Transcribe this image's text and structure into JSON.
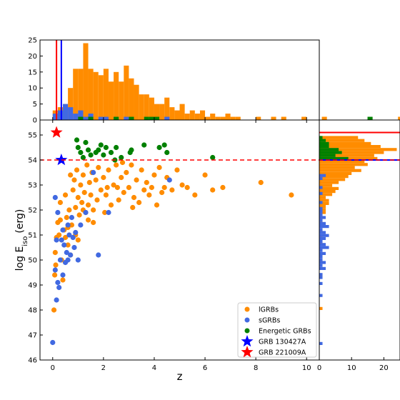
{
  "chart_data": [
    {
      "panel": "main-scatter",
      "type": "scatter",
      "xlabel": "z",
      "ylabel_base": "log E",
      "ylabel_sub": "iso",
      "ylabel_unit": "(erg)",
      "xlim": [
        -0.5,
        10.5
      ],
      "ylim": [
        46,
        55.6
      ],
      "xticks": [
        "0",
        "2",
        "4",
        "6",
        "8",
        "10"
      ],
      "yticks": [
        "46",
        "47",
        "48",
        "49",
        "50",
        "51",
        "52",
        "53",
        "54",
        "55"
      ],
      "threshold_y": 54,
      "legend_position": "lower right",
      "series": [
        {
          "name": "lGRBs",
          "color": "#ff8c00",
          "points": [
            [
              0.05,
              48.0
            ],
            [
              0.08,
              49.4
            ],
            [
              0.1,
              50.3
            ],
            [
              0.12,
              49.8
            ],
            [
              0.15,
              50.9
            ],
            [
              0.2,
              51.5
            ],
            [
              0.25,
              51.0
            ],
            [
              0.3,
              52.3
            ],
            [
              0.35,
              50.0
            ],
            [
              0.4,
              49.2
            ],
            [
              0.45,
              51.2
            ],
            [
              0.5,
              52.6
            ],
            [
              0.55,
              51.7
            ],
            [
              0.6,
              50.6
            ],
            [
              0.65,
              52.0
            ],
            [
              0.7,
              53.4
            ],
            [
              0.75,
              51.4
            ],
            [
              0.8,
              52.8
            ],
            [
              0.85,
              53.2
            ],
            [
              0.9,
              52.1
            ],
            [
              0.95,
              53.6
            ],
            [
              1.0,
              52.5
            ],
            [
              1.05,
              51.8
            ],
            [
              1.1,
              53.0
            ],
            [
              1.15,
              52.3
            ],
            [
              1.2,
              53.4
            ],
            [
              1.25,
              52.7
            ],
            [
              1.3,
              51.9
            ],
            [
              1.35,
              53.8
            ],
            [
              1.4,
              52.2
            ],
            [
              1.45,
              53.1
            ],
            [
              1.5,
              52.6
            ],
            [
              1.55,
              53.5
            ],
            [
              1.6,
              52.0
            ],
            [
              1.7,
              53.2
            ],
            [
              1.75,
              52.4
            ],
            [
              1.8,
              53.7
            ],
            [
              1.9,
              52.8
            ],
            [
              2.0,
              53.3
            ],
            [
              2.05,
              51.9
            ],
            [
              2.1,
              52.6
            ],
            [
              2.2,
              53.6
            ],
            [
              2.3,
              52.2
            ],
            [
              2.4,
              53.0
            ],
            [
              2.5,
              53.8
            ],
            [
              2.6,
              52.4
            ],
            [
              2.7,
              53.3
            ],
            [
              2.8,
              52.7
            ],
            [
              2.9,
              53.5
            ],
            [
              3.0,
              52.9
            ],
            [
              3.1,
              53.8
            ],
            [
              3.2,
              52.5
            ],
            [
              3.3,
              53.2
            ],
            [
              3.4,
              52.3
            ],
            [
              3.5,
              53.6
            ],
            [
              3.6,
              52.8
            ],
            [
              3.7,
              53.1
            ],
            [
              3.8,
              52.6
            ],
            [
              4.0,
              53.4
            ],
            [
              4.1,
              52.2
            ],
            [
              4.2,
              53.7
            ],
            [
              4.3,
              52.7
            ],
            [
              4.5,
              53.3
            ],
            [
              4.7,
              52.8
            ],
            [
              4.9,
              53.6
            ],
            [
              5.1,
              53.0
            ],
            [
              5.3,
              52.9
            ],
            [
              5.6,
              52.6
            ],
            [
              6.0,
              53.4
            ],
            [
              6.3,
              52.8
            ],
            [
              6.7,
              52.9
            ],
            [
              8.2,
              53.1
            ],
            [
              9.4,
              52.6
            ],
            [
              0.6,
              51.3
            ],
            [
              0.9,
              51.0
            ],
            [
              1.2,
              52.0
            ],
            [
              1.6,
              51.5
            ],
            [
              2.15,
              52.9
            ],
            [
              2.55,
              52.9
            ],
            [
              3.15,
              52.1
            ],
            [
              0.7,
              50.2
            ],
            [
              1.0,
              50.8
            ],
            [
              1.4,
              51.6
            ],
            [
              0.3,
              51.6
            ],
            [
              0.5,
              50.9
            ],
            [
              2.75,
              53.9
            ],
            [
              3.9,
              52.9
            ],
            [
              4.4,
              52.9
            ]
          ]
        },
        {
          "name": "sGRBs",
          "color": "#4169e1",
          "points": [
            [
              0.0,
              46.7
            ],
            [
              0.1,
              49.6
            ],
            [
              0.15,
              48.4
            ],
            [
              0.2,
              49.1
            ],
            [
              0.25,
              48.9
            ],
            [
              0.3,
              50.0
            ],
            [
              0.35,
              50.8
            ],
            [
              0.4,
              51.2
            ],
            [
              0.45,
              50.6
            ],
            [
              0.5,
              49.9
            ],
            [
              0.55,
              50.3
            ],
            [
              0.6,
              51.4
            ],
            [
              0.65,
              51.0
            ],
            [
              0.7,
              50.2
            ],
            [
              0.75,
              51.7
            ],
            [
              0.8,
              50.9
            ],
            [
              0.85,
              50.5
            ],
            [
              0.9,
              51.1
            ],
            [
              1.0,
              50.0
            ],
            [
              1.1,
              51.4
            ],
            [
              1.3,
              51.9
            ],
            [
              1.6,
              53.5
            ],
            [
              1.8,
              50.2
            ],
            [
              2.2,
              51.9
            ],
            [
              4.6,
              53.2
            ],
            [
              0.2,
              51.9
            ],
            [
              0.4,
              49.4
            ],
            [
              0.1,
              52.5
            ],
            [
              0.15,
              50.8
            ],
            [
              0.6,
              50.0
            ]
          ]
        },
        {
          "name": "Energetic GRBs",
          "color": "#008000",
          "points": [
            [
              0.95,
              54.8
            ],
            [
              1.0,
              54.5
            ],
            [
              1.1,
              54.3
            ],
            [
              1.3,
              54.7
            ],
            [
              1.4,
              54.4
            ],
            [
              1.5,
              54.2
            ],
            [
              1.7,
              54.3
            ],
            [
              1.9,
              54.6
            ],
            [
              2.0,
              54.2
            ],
            [
              2.1,
              54.5
            ],
            [
              2.3,
              54.3
            ],
            [
              2.5,
              54.5
            ],
            [
              2.7,
              54.1
            ],
            [
              3.05,
              54.3
            ],
            [
              3.6,
              54.6
            ],
            [
              4.2,
              54.5
            ],
            [
              4.4,
              54.6
            ],
            [
              4.5,
              54.3
            ],
            [
              6.3,
              54.1
            ],
            [
              1.2,
              54.1
            ],
            [
              1.8,
              54.4
            ],
            [
              2.45,
              54.0
            ],
            [
              3.1,
              54.4
            ]
          ]
        },
        {
          "name": "GRB 130427A",
          "color": "#0000ff",
          "marker": "star",
          "points": [
            [
              0.34,
              54.0
            ]
          ]
        },
        {
          "name": "GRB 221009A",
          "color": "#ff0000",
          "marker": "star",
          "points": [
            [
              0.15,
              55.1
            ]
          ]
        }
      ]
    },
    {
      "panel": "top-histogram",
      "type": "bar",
      "axis": "z",
      "bin_width": 0.2,
      "ylim": [
        0,
        25
      ],
      "yticks": [
        "0",
        "5",
        "10",
        "15",
        "20",
        "25"
      ],
      "vlines": [
        {
          "x": 0.15,
          "color": "#ff0000"
        },
        {
          "x": 0.34,
          "color": "#0000ff"
        }
      ],
      "series": [
        {
          "name": "lGRBs",
          "color": "#ff8c00",
          "bins_from": 0,
          "counts": [
            3,
            4,
            5,
            10,
            16,
            16,
            24,
            16,
            15,
            14,
            16,
            12,
            15,
            12,
            17,
            13,
            11,
            8,
            8,
            7,
            5,
            5,
            7,
            4,
            3,
            5,
            2,
            3,
            2,
            3,
            1,
            2,
            1,
            1,
            2,
            1,
            1,
            0,
            0,
            0,
            1,
            0,
            0,
            1,
            0,
            1,
            0,
            0,
            0,
            1,
            0,
            0,
            0,
            1,
            0,
            0,
            0,
            0,
            0,
            0,
            0,
            0,
            0,
            0,
            0,
            0,
            0,
            0,
            1,
            0,
            0,
            0,
            0,
            0,
            0,
            0,
            0,
            0,
            0,
            0,
            0,
            0,
            0,
            0,
            0,
            0,
            0,
            0,
            0,
            0,
            0,
            0,
            0,
            0,
            1
          ]
        },
        {
          "name": "sGRBs",
          "color": "#4169e1",
          "bins_from": 0,
          "counts": [
            2,
            3,
            5,
            4,
            2,
            3,
            1,
            2,
            0,
            1,
            1,
            0,
            1,
            0,
            1,
            0,
            0,
            0,
            0,
            0,
            0,
            0,
            1
          ]
        },
        {
          "name": "Energetic GRBs",
          "color": "#008000",
          "bins_from": 0,
          "counts": [
            0,
            0,
            0,
            0,
            0,
            1,
            0,
            1,
            0,
            0,
            0,
            0,
            1,
            0,
            0,
            1,
            0,
            0,
            1,
            1,
            1,
            0,
            0,
            0,
            0,
            0,
            0,
            0,
            0,
            0,
            0,
            0,
            0,
            0,
            0,
            0,
            0,
            0,
            0,
            0,
            0,
            0,
            0,
            0,
            0,
            0,
            0,
            0,
            0,
            0,
            0,
            0,
            0,
            0,
            0,
            0,
            0,
            0,
            0,
            0,
            0,
            0,
            1
          ]
        }
      ]
    },
    {
      "panel": "right-histogram",
      "type": "bar",
      "axis": "log Eiso",
      "bin_width": 0.12,
      "xlim": [
        0,
        25
      ],
      "xticks": [
        "0",
        "10",
        "20"
      ],
      "hlines": [
        {
          "y": 55.1,
          "color": "#ff0000"
        },
        {
          "y": 54.0,
          "color": "#0000ff"
        }
      ],
      "series": [
        {
          "name": "lGRBs",
          "color": "#ff8c00",
          "start": 48.0,
          "counts": [
            1,
            0,
            0,
            0,
            0,
            0,
            0,
            0,
            0,
            0,
            0,
            1,
            0,
            0,
            0,
            0,
            1,
            0,
            0,
            0,
            1,
            0,
            1,
            0,
            1,
            0,
            1,
            0,
            0,
            1,
            1,
            1,
            2,
            2,
            2,
            3,
            3,
            2,
            4,
            5,
            6,
            4,
            6,
            8,
            9,
            10,
            13,
            11,
            15,
            14,
            18,
            17,
            20,
            24,
            19,
            16,
            14,
            12
          ]
        },
        {
          "name": "sGRBs",
          "color": "#4169e1",
          "start": 46.6,
          "counts": [
            1,
            0,
            0,
            0,
            0,
            0,
            0,
            0,
            0,
            0,
            0,
            0,
            0,
            0,
            0,
            0,
            1,
            0,
            0,
            0,
            1,
            0,
            1,
            1,
            0,
            2,
            1,
            2,
            1,
            1,
            2,
            1,
            3,
            2,
            1,
            2,
            3,
            2,
            1,
            3,
            2,
            1,
            2,
            1,
            1,
            1,
            0,
            1,
            0,
            0,
            1,
            0,
            1,
            0,
            0,
            1,
            2
          ]
        },
        {
          "name": "Energetic GRBs",
          "color": "#008000",
          "start": 54.0,
          "counts": [
            9,
            5,
            7,
            6,
            3,
            3,
            2,
            1
          ]
        }
      ]
    }
  ]
}
